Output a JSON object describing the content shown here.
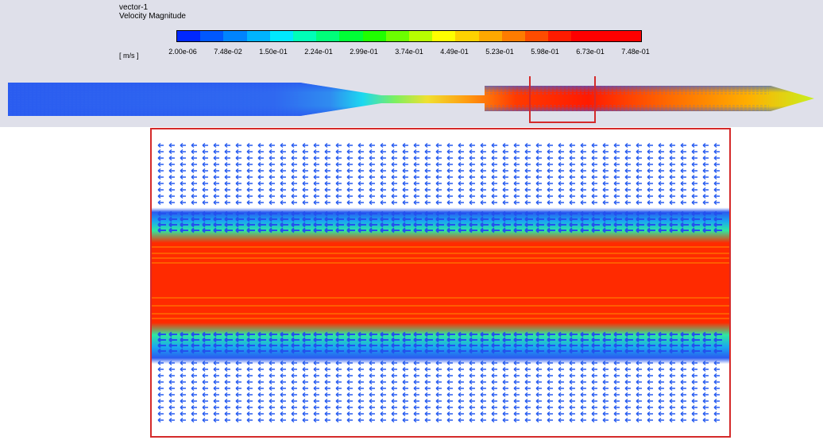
{
  "header": {
    "plot_name": "vector-1",
    "variable": "Velocity Magnitude",
    "unit": "[ m/s ]"
  },
  "legend": {
    "tick_labels": [
      "2.00e-06",
      "7.48e-02",
      "1.50e-01",
      "2.24e-01",
      "2.99e-01",
      "3.74e-01",
      "4.49e-01",
      "5.23e-01",
      "5.98e-01",
      "6.73e-01",
      "7.48e-01"
    ],
    "colors": [
      "#0028ff",
      "#0058ff",
      "#0084ff",
      "#00b4ff",
      "#00e8ff",
      "#00ffb8",
      "#00ff7a",
      "#00ff36",
      "#20ff00",
      "#6cff00",
      "#b8ff00",
      "#ffff00",
      "#ffd200",
      "#ffa800",
      "#ff7c00",
      "#ff4c00",
      "#ff1c00",
      "#ff0000",
      "#ff0000",
      "#ff0000"
    ]
  },
  "colors": {
    "panel_background": "#dfe0ea",
    "highlight_box": "#d42a2a",
    "low_velocity": "#2a5cf0",
    "high_velocity": "#ff1a00"
  }
}
